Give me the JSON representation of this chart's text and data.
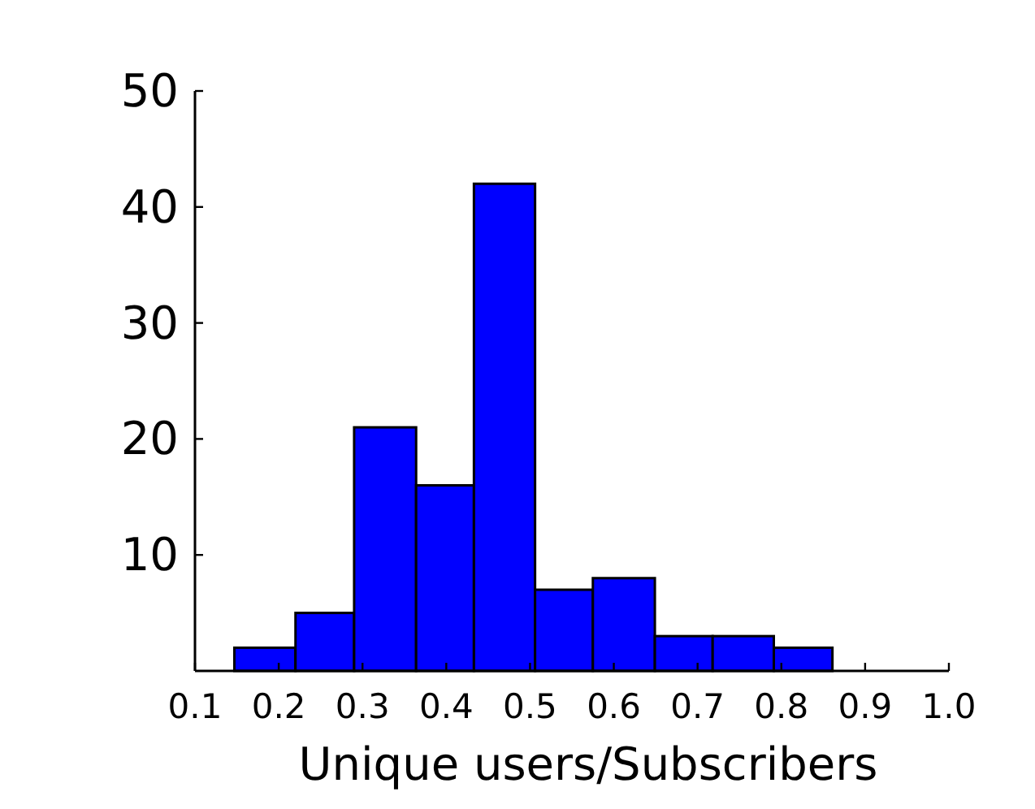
{
  "chart_data": {
    "type": "histogram",
    "xlabel": "Unique users/Subscribers",
    "bins": [
      0.147,
      0.22,
      0.29,
      0.364,
      0.433,
      0.506,
      0.575,
      0.649,
      0.718,
      0.791,
      0.861
    ],
    "values": [
      2,
      5,
      21,
      16,
      42,
      7,
      8,
      3,
      3,
      2
    ],
    "color": "#0000ff",
    "xlim": [
      0.1,
      1.0
    ],
    "xticks": [
      0.1,
      0.2,
      0.3,
      0.4,
      0.5,
      0.6,
      0.7,
      0.8,
      0.9,
      {
        "value": 1.0,
        "label": "1.0"
      }
    ],
    "ylim": [
      0,
      50
    ],
    "yticks": [
      10,
      20,
      30,
      40,
      50
    ]
  }
}
